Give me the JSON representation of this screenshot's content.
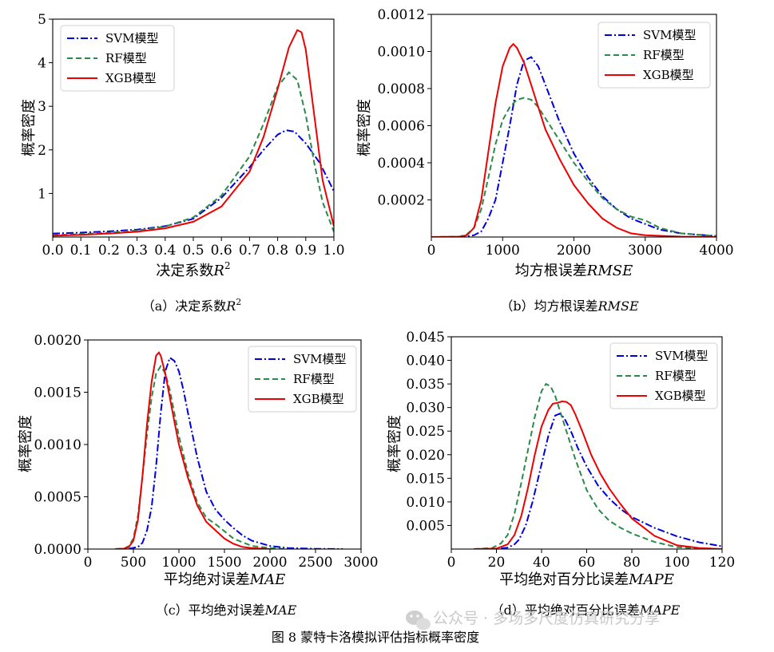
{
  "figure": {
    "caption": "图 8  蒙特卡洛模拟评估指标概率密度",
    "watermark": "公众号 · 多场多尺度仿真研究分享"
  },
  "chart_data": [
    {
      "type": "line",
      "panel_caption": {
        "prefix": "（a）决定系数",
        "symbol": "R",
        "sup": "2"
      },
      "xlabel": {
        "text": "决定系数",
        "symbol": "R",
        "sup": "2"
      },
      "ylabel": "概率密度",
      "xlim": [
        0,
        1
      ],
      "ylim": [
        0,
        5
      ],
      "xticks": [
        0,
        0.1,
        0.2,
        0.3,
        0.4,
        0.5,
        0.6,
        0.7,
        0.8,
        0.9,
        1.0
      ],
      "xtick_labels": [
        "0.0",
        "0.1",
        "0.2",
        "0.3",
        "0.4",
        "0.5",
        "0.6",
        "0.7",
        "0.8",
        "0.9",
        "1.0"
      ],
      "yticks": [
        1,
        2,
        3,
        4,
        5
      ],
      "ytick_labels": [
        "1",
        "2",
        "3",
        "4",
        "5"
      ],
      "legend_position": "top-left",
      "series": [
        {
          "name": "SVM模型",
          "color": "#0000dd",
          "style": "dashdot",
          "x": [
            0,
            0.1,
            0.2,
            0.3,
            0.4,
            0.5,
            0.6,
            0.7,
            0.75,
            0.8,
            0.83,
            0.86,
            0.9,
            0.95,
            1.0
          ],
          "y": [
            0.08,
            0.1,
            0.13,
            0.17,
            0.25,
            0.42,
            0.9,
            1.6,
            2.0,
            2.35,
            2.45,
            2.42,
            2.15,
            1.7,
            1.05
          ]
        },
        {
          "name": "RF模型",
          "color": "#2a8a4a",
          "style": "dashed",
          "x": [
            0,
            0.1,
            0.2,
            0.3,
            0.4,
            0.5,
            0.6,
            0.7,
            0.75,
            0.8,
            0.84,
            0.87,
            0.9,
            0.93,
            0.96,
            1.0
          ],
          "y": [
            0.04,
            0.07,
            0.1,
            0.15,
            0.24,
            0.45,
            0.95,
            1.85,
            2.6,
            3.45,
            3.78,
            3.6,
            2.8,
            1.7,
            0.8,
            0.12
          ]
        },
        {
          "name": "XGB模型",
          "color": "#ee0000",
          "style": "solid",
          "x": [
            0,
            0.1,
            0.2,
            0.3,
            0.4,
            0.5,
            0.6,
            0.7,
            0.75,
            0.8,
            0.84,
            0.87,
            0.885,
            0.9,
            0.93,
            0.96,
            1.0
          ],
          "y": [
            0.03,
            0.05,
            0.08,
            0.12,
            0.2,
            0.35,
            0.7,
            1.5,
            2.3,
            3.4,
            4.35,
            4.75,
            4.7,
            4.3,
            2.8,
            1.3,
            0.25
          ]
        }
      ]
    },
    {
      "type": "line",
      "panel_caption": {
        "prefix": "（b）均方根误差",
        "symbol": "RMSE"
      },
      "xlabel": {
        "text": "均方根误差",
        "symbol": "RMSE"
      },
      "ylabel": "概率密度",
      "xlim": [
        0,
        4000
      ],
      "ylim": [
        0,
        0.0012
      ],
      "xticks": [
        0,
        1000,
        2000,
        3000,
        4000
      ],
      "xtick_labels": [
        "0",
        "1000",
        "2000",
        "3000",
        "4000"
      ],
      "yticks": [
        0.0002,
        0.0004,
        0.0006,
        0.0008,
        0.001,
        0.0012
      ],
      "ytick_labels": [
        "0.0002",
        "0.0004",
        "0.0006",
        "0.0008",
        "0.0010",
        "0.0012"
      ],
      "legend_position": "top-right",
      "series": [
        {
          "name": "SVM模型",
          "color": "#0000dd",
          "style": "dashdot",
          "x": [
            0,
            400,
            500,
            600,
            700,
            800,
            900,
            1000,
            1100,
            1200,
            1300,
            1400,
            1500,
            1600,
            1800,
            2000,
            2200,
            2400,
            2600,
            2800,
            3000,
            3200,
            3500,
            4000
          ],
          "y": [
            0,
            0,
            3e-06,
            1e-05,
            3e-05,
            0.0001,
            0.0002,
            0.0004,
            0.0006,
            0.00082,
            0.00095,
            0.00097,
            0.00092,
            0.00082,
            0.00062,
            0.00045,
            0.00032,
            0.00022,
            0.00015,
            0.0001,
            7e-05,
            4e-05,
            2e-05,
            5e-06
          ]
        },
        {
          "name": "RF模型",
          "color": "#2a8a4a",
          "style": "dashed",
          "x": [
            0,
            400,
            500,
            600,
            700,
            800,
            900,
            1000,
            1100,
            1200,
            1300,
            1400,
            1500,
            1600,
            1800,
            2000,
            2200,
            2400,
            2600,
            2800,
            3000,
            3200,
            3500,
            4000
          ],
          "y": [
            0,
            2e-06,
            1.5e-05,
            5e-05,
            0.00015,
            0.00032,
            0.0005,
            0.00063,
            0.0007,
            0.00074,
            0.00075,
            0.00074,
            0.0007,
            0.00064,
            0.00052,
            0.0004,
            0.0003,
            0.00021,
            0.00015,
            0.00011,
            9e-05,
            5e-05,
            2e-05,
            5e-06
          ]
        },
        {
          "name": "XGB模型",
          "color": "#ee0000",
          "style": "solid",
          "x": [
            0,
            400,
            500,
            600,
            700,
            800,
            900,
            1000,
            1100,
            1150,
            1200,
            1300,
            1400,
            1500,
            1600,
            1800,
            2000,
            2200,
            2400,
            2600,
            2800,
            3000,
            3500,
            4000
          ],
          "y": [
            0,
            2e-06,
            1e-05,
            5e-05,
            0.0002,
            0.00046,
            0.00072,
            0.00092,
            0.00102,
            0.00104,
            0.00102,
            0.00094,
            0.00082,
            0.0007,
            0.00058,
            0.00042,
            0.00028,
            0.00018,
            0.0001,
            5e-05,
            2e-05,
            1e-05,
            2e-06,
            0
          ]
        }
      ]
    },
    {
      "type": "line",
      "panel_caption": {
        "prefix": "（c）平均绝对误差",
        "symbol": "MAE"
      },
      "xlabel": {
        "text": "平均绝对误差",
        "symbol": "MAE"
      },
      "ylabel": "概率密度",
      "xlim": [
        0,
        3000
      ],
      "ylim": [
        0,
        0.002
      ],
      "xticks": [
        0,
        500,
        1000,
        1500,
        2000,
        2500,
        3000
      ],
      "xtick_labels": [
        "0",
        "500",
        "1000",
        "1500",
        "2000",
        "2500",
        "3000"
      ],
      "yticks": [
        0,
        0.0005,
        0.001,
        0.0015,
        0.002
      ],
      "ytick_labels": [
        "0.0000",
        "0.0005",
        "0.0010",
        "0.0015",
        "0.0020"
      ],
      "legend_position": "top-right",
      "series": [
        {
          "name": "SVM模型",
          "color": "#0000dd",
          "style": "dashdot",
          "x": [
            300,
            450,
            550,
            600,
            650,
            700,
            750,
            800,
            850,
            900,
            950,
            1000,
            1050,
            1100,
            1200,
            1300,
            1400,
            1500,
            1600,
            1700,
            1800,
            2000,
            2200,
            2500,
            2800
          ],
          "y": [
            0,
            3e-06,
            2e-05,
            6e-05,
            0.00018,
            0.0004,
            0.0008,
            0.0013,
            0.0017,
            0.00183,
            0.0018,
            0.0017,
            0.00152,
            0.0013,
            0.00088,
            0.00055,
            0.00038,
            0.00028,
            0.0002,
            0.00013,
            8e-05,
            3e-05,
            1e-05,
            2e-06,
            0
          ]
        },
        {
          "name": "RF模型",
          "color": "#2a8a4a",
          "style": "dashed",
          "x": [
            300,
            400,
            450,
            500,
            550,
            600,
            650,
            700,
            750,
            800,
            850,
            900,
            950,
            1000,
            1100,
            1200,
            1300,
            1400,
            1500,
            1600,
            1800,
            2000,
            2200
          ],
          "y": [
            0,
            5e-06,
            3e-05,
            0.0001,
            0.00032,
            0.0007,
            0.0011,
            0.00145,
            0.00168,
            0.00175,
            0.00168,
            0.00152,
            0.0013,
            0.00108,
            0.00072,
            0.00045,
            0.0003,
            0.00024,
            0.00017,
            0.0001,
            3e-05,
            1e-05,
            0
          ]
        },
        {
          "name": "XGB模型",
          "color": "#ee0000",
          "style": "solid",
          "x": [
            300,
            400,
            450,
            500,
            550,
            600,
            650,
            700,
            750,
            780,
            800,
            850,
            900,
            950,
            1000,
            1100,
            1200,
            1300,
            1400,
            1500,
            1600,
            1700,
            1800,
            2000
          ],
          "y": [
            0,
            4e-06,
            2e-05,
            8e-05,
            0.00028,
            0.0007,
            0.0012,
            0.0016,
            0.00185,
            0.00188,
            0.00185,
            0.00168,
            0.00145,
            0.00122,
            0.001,
            0.00068,
            0.00042,
            0.00026,
            0.00018,
            0.0001,
            5e-05,
            2e-05,
            1e-05,
            0
          ]
        }
      ]
    },
    {
      "type": "line",
      "panel_caption": {
        "prefix": "（d）平均绝对百分比误差",
        "symbol": "MAPE"
      },
      "xlabel": {
        "text": "平均绝对百分比误差",
        "symbol": "MAPE"
      },
      "ylabel": "概率密度",
      "xlim": [
        0,
        120
      ],
      "ylim": [
        0,
        0.045
      ],
      "xticks": [
        0,
        20,
        40,
        60,
        80,
        100,
        120
      ],
      "xtick_labels": [
        "0",
        "20",
        "40",
        "60",
        "80",
        "100",
        "120"
      ],
      "yticks": [
        0.005,
        0.01,
        0.015,
        0.02,
        0.025,
        0.03,
        0.035,
        0.04,
        0.045
      ],
      "ytick_labels": [
        "0.005",
        "0.010",
        "0.015",
        "0.020",
        "0.025",
        "0.030",
        "0.035",
        "0.040",
        "0.045"
      ],
      "legend_position": "top-right",
      "series": [
        {
          "name": "SVM模型",
          "color": "#0000dd",
          "style": "dashdot",
          "x": [
            10,
            20,
            25,
            28,
            30,
            33,
            36,
            40,
            43,
            46,
            48,
            50,
            53,
            56,
            60,
            65,
            70,
            75,
            80,
            90,
            100,
            110,
            120
          ],
          "y": [
            0,
            2e-05,
            0.0003,
            0.001,
            0.002,
            0.005,
            0.01,
            0.018,
            0.024,
            0.0283,
            0.0287,
            0.0278,
            0.025,
            0.0215,
            0.0175,
            0.0135,
            0.0107,
            0.0085,
            0.0068,
            0.0045,
            0.0027,
            0.0014,
            0.0006
          ]
        },
        {
          "name": "RF模型",
          "color": "#2a8a4a",
          "style": "dashed",
          "x": [
            10,
            18,
            22,
            25,
            28,
            31,
            34,
            37,
            40,
            42,
            44,
            46,
            50,
            55,
            60,
            65,
            70,
            75,
            80,
            90,
            100,
            110
          ],
          "y": [
            0,
            0.0002,
            0.0012,
            0.003,
            0.0075,
            0.014,
            0.021,
            0.028,
            0.0335,
            0.035,
            0.0345,
            0.0325,
            0.0265,
            0.019,
            0.0125,
            0.0085,
            0.006,
            0.0045,
            0.0033,
            0.0015,
            0.0004,
            0.0001
          ]
        },
        {
          "name": "XGB模型",
          "color": "#ee0000",
          "style": "solid",
          "x": [
            10,
            20,
            25,
            28,
            31,
            34,
            37,
            40,
            43,
            45,
            47,
            49,
            51,
            53,
            55,
            58,
            62,
            66,
            70,
            75,
            80,
            90,
            100,
            110,
            120
          ],
          "y": [
            0,
            0.0001,
            0.001,
            0.003,
            0.007,
            0.013,
            0.02,
            0.026,
            0.0295,
            0.0308,
            0.031,
            0.0313,
            0.0312,
            0.0305,
            0.0285,
            0.025,
            0.02,
            0.016,
            0.0128,
            0.0095,
            0.0065,
            0.0028,
            0.0008,
            0.0002,
            0
          ]
        }
      ]
    }
  ]
}
